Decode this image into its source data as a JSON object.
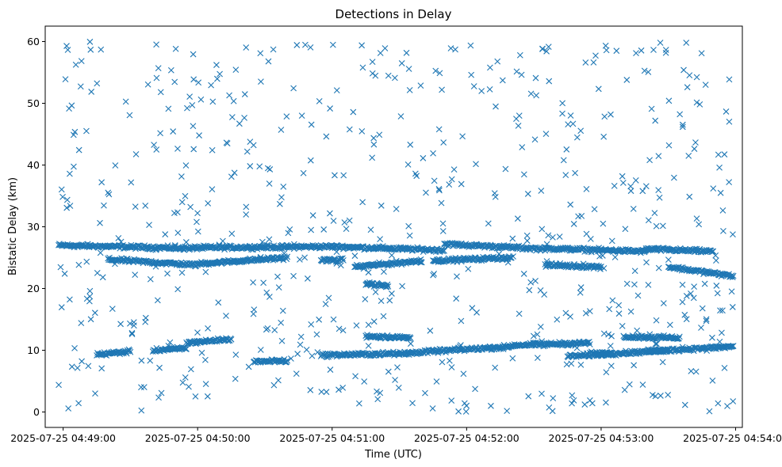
{
  "chart_data": {
    "type": "scatter",
    "title": "Detections in Delay",
    "xlabel": "Time (UTC)",
    "ylabel": "Bistatic Delay (km)",
    "x_axis": {
      "type": "time",
      "min": "2025-07-25 04:48:52",
      "max": "2025-07-25 04:54:03",
      "ticks": [
        "2025-07-25 04:49:00",
        "2025-07-25 04:50:00",
        "2025-07-25 04:51:00",
        "2025-07-25 04:52:00",
        "2025-07-25 04:53:00",
        "2025-07-25 04:54:00"
      ]
    },
    "y_axis": {
      "min": -2.5,
      "max": 62.5,
      "ticks": [
        0,
        10,
        20,
        30,
        40,
        50,
        60
      ]
    },
    "grid": false,
    "legend": "none",
    "marker": "x",
    "color": "#1f77b4",
    "series": [
      {
        "start": "2025-07-25 04:48:58",
        "end": "2025-07-25 04:53:59",
        "tracks": [
          {
            "start": "2025-07-25 04:48:58",
            "end": "2025-07-25 04:49:58",
            "y_start": 27.0,
            "y_end": 26.5
          },
          {
            "start": "2025-07-25 04:49:58",
            "end": "2025-07-25 04:51:00",
            "y_start": 26.6,
            "y_end": 26.8
          },
          {
            "start": "2025-07-25 04:51:00",
            "end": "2025-07-25 04:51:50",
            "y_start": 26.8,
            "y_end": 26.2
          },
          {
            "start": "2025-07-25 04:51:50",
            "end": "2025-07-25 04:52:35",
            "y_start": 27.2,
            "y_end": 26.4
          },
          {
            "start": "2025-07-25 04:52:35",
            "end": "2025-07-25 04:53:20",
            "y_start": 26.5,
            "y_end": 26.0
          },
          {
            "start": "2025-07-25 04:53:20",
            "end": "2025-07-25 04:53:50",
            "y_start": 26.4,
            "y_end": 26.0
          },
          {
            "start": "2025-07-25 04:49:20",
            "end": "2025-07-25 04:50:00",
            "y_start": 24.7,
            "y_end": 23.8
          },
          {
            "start": "2025-07-25 04:50:00",
            "end": "2025-07-25 04:50:40",
            "y_start": 24.0,
            "y_end": 25.0
          },
          {
            "start": "2025-07-25 04:50:55",
            "end": "2025-07-25 04:51:05",
            "y_start": 24.6,
            "y_end": 24.6
          },
          {
            "start": "2025-07-25 04:51:15",
            "end": "2025-07-25 04:51:25",
            "y_start": 20.8,
            "y_end": 20.4
          },
          {
            "start": "2025-07-25 04:51:10",
            "end": "2025-07-25 04:51:40",
            "y_start": 23.5,
            "y_end": 24.5
          },
          {
            "start": "2025-07-25 04:51:45",
            "end": "2025-07-25 04:52:20",
            "y_start": 24.5,
            "y_end": 25.0
          },
          {
            "start": "2025-07-25 04:52:35",
            "end": "2025-07-25 04:53:00",
            "y_start": 23.8,
            "y_end": 23.5
          },
          {
            "start": "2025-07-25 04:53:30",
            "end": "2025-07-25 04:53:59",
            "y_start": 23.5,
            "y_end": 22.0
          },
          {
            "start": "2025-07-25 04:49:15",
            "end": "2025-07-25 04:49:30",
            "y_start": 9.3,
            "y_end": 9.8
          },
          {
            "start": "2025-07-25 04:49:40",
            "end": "2025-07-25 04:49:55",
            "y_start": 10.0,
            "y_end": 10.3
          },
          {
            "start": "2025-07-25 04:49:55",
            "end": "2025-07-25 04:50:15",
            "y_start": 11.2,
            "y_end": 11.8
          },
          {
            "start": "2025-07-25 04:50:55",
            "end": "2025-07-25 04:51:35",
            "y_start": 9.2,
            "y_end": 9.5
          },
          {
            "start": "2025-07-25 04:51:15",
            "end": "2025-07-25 04:51:35",
            "y_start": 12.3,
            "y_end": 12.0
          },
          {
            "start": "2025-07-25 04:51:35",
            "end": "2025-07-25 04:52:20",
            "y_start": 9.6,
            "y_end": 10.6
          },
          {
            "start": "2025-07-25 04:52:20",
            "end": "2025-07-25 04:52:55",
            "y_start": 10.8,
            "y_end": 11.2
          },
          {
            "start": "2025-07-25 04:52:45",
            "end": "2025-07-25 04:53:30",
            "y_start": 9.0,
            "y_end": 10.0
          },
          {
            "start": "2025-07-25 04:53:10",
            "end": "2025-07-25 04:53:35",
            "y_start": 12.2,
            "y_end": 12.0
          },
          {
            "start": "2025-07-25 04:53:20",
            "end": "2025-07-25 04:53:59",
            "y_start": 9.8,
            "y_end": 10.6
          },
          {
            "start": "2025-07-25 04:50:25",
            "end": "2025-07-25 04:50:40",
            "y_start": 8.2,
            "y_end": 8.2
          },
          {
            "start": "2025-07-25 04:52:55",
            "end": "2025-07-25 04:53:05",
            "y_start": 9.5,
            "y_end": 9.5
          }
        ],
        "scatter_count": 650,
        "scatter_y_range": [
          0,
          60
        ]
      }
    ]
  }
}
